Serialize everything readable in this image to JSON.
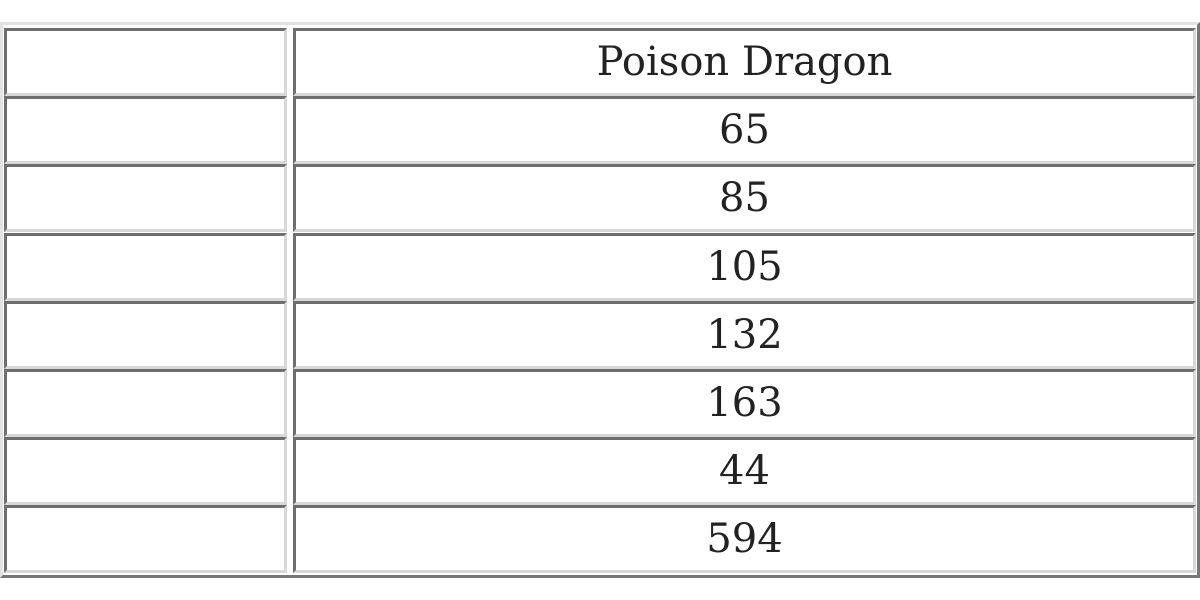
{
  "table": {
    "header": [
      "",
      "Poison Dragon"
    ],
    "rows": [
      [
        "",
        "65"
      ],
      [
        "",
        "85"
      ],
      [
        "",
        "105"
      ],
      [
        "",
        "132"
      ],
      [
        "",
        "163"
      ],
      [
        "",
        "44"
      ],
      [
        "",
        "594"
      ]
    ]
  }
}
